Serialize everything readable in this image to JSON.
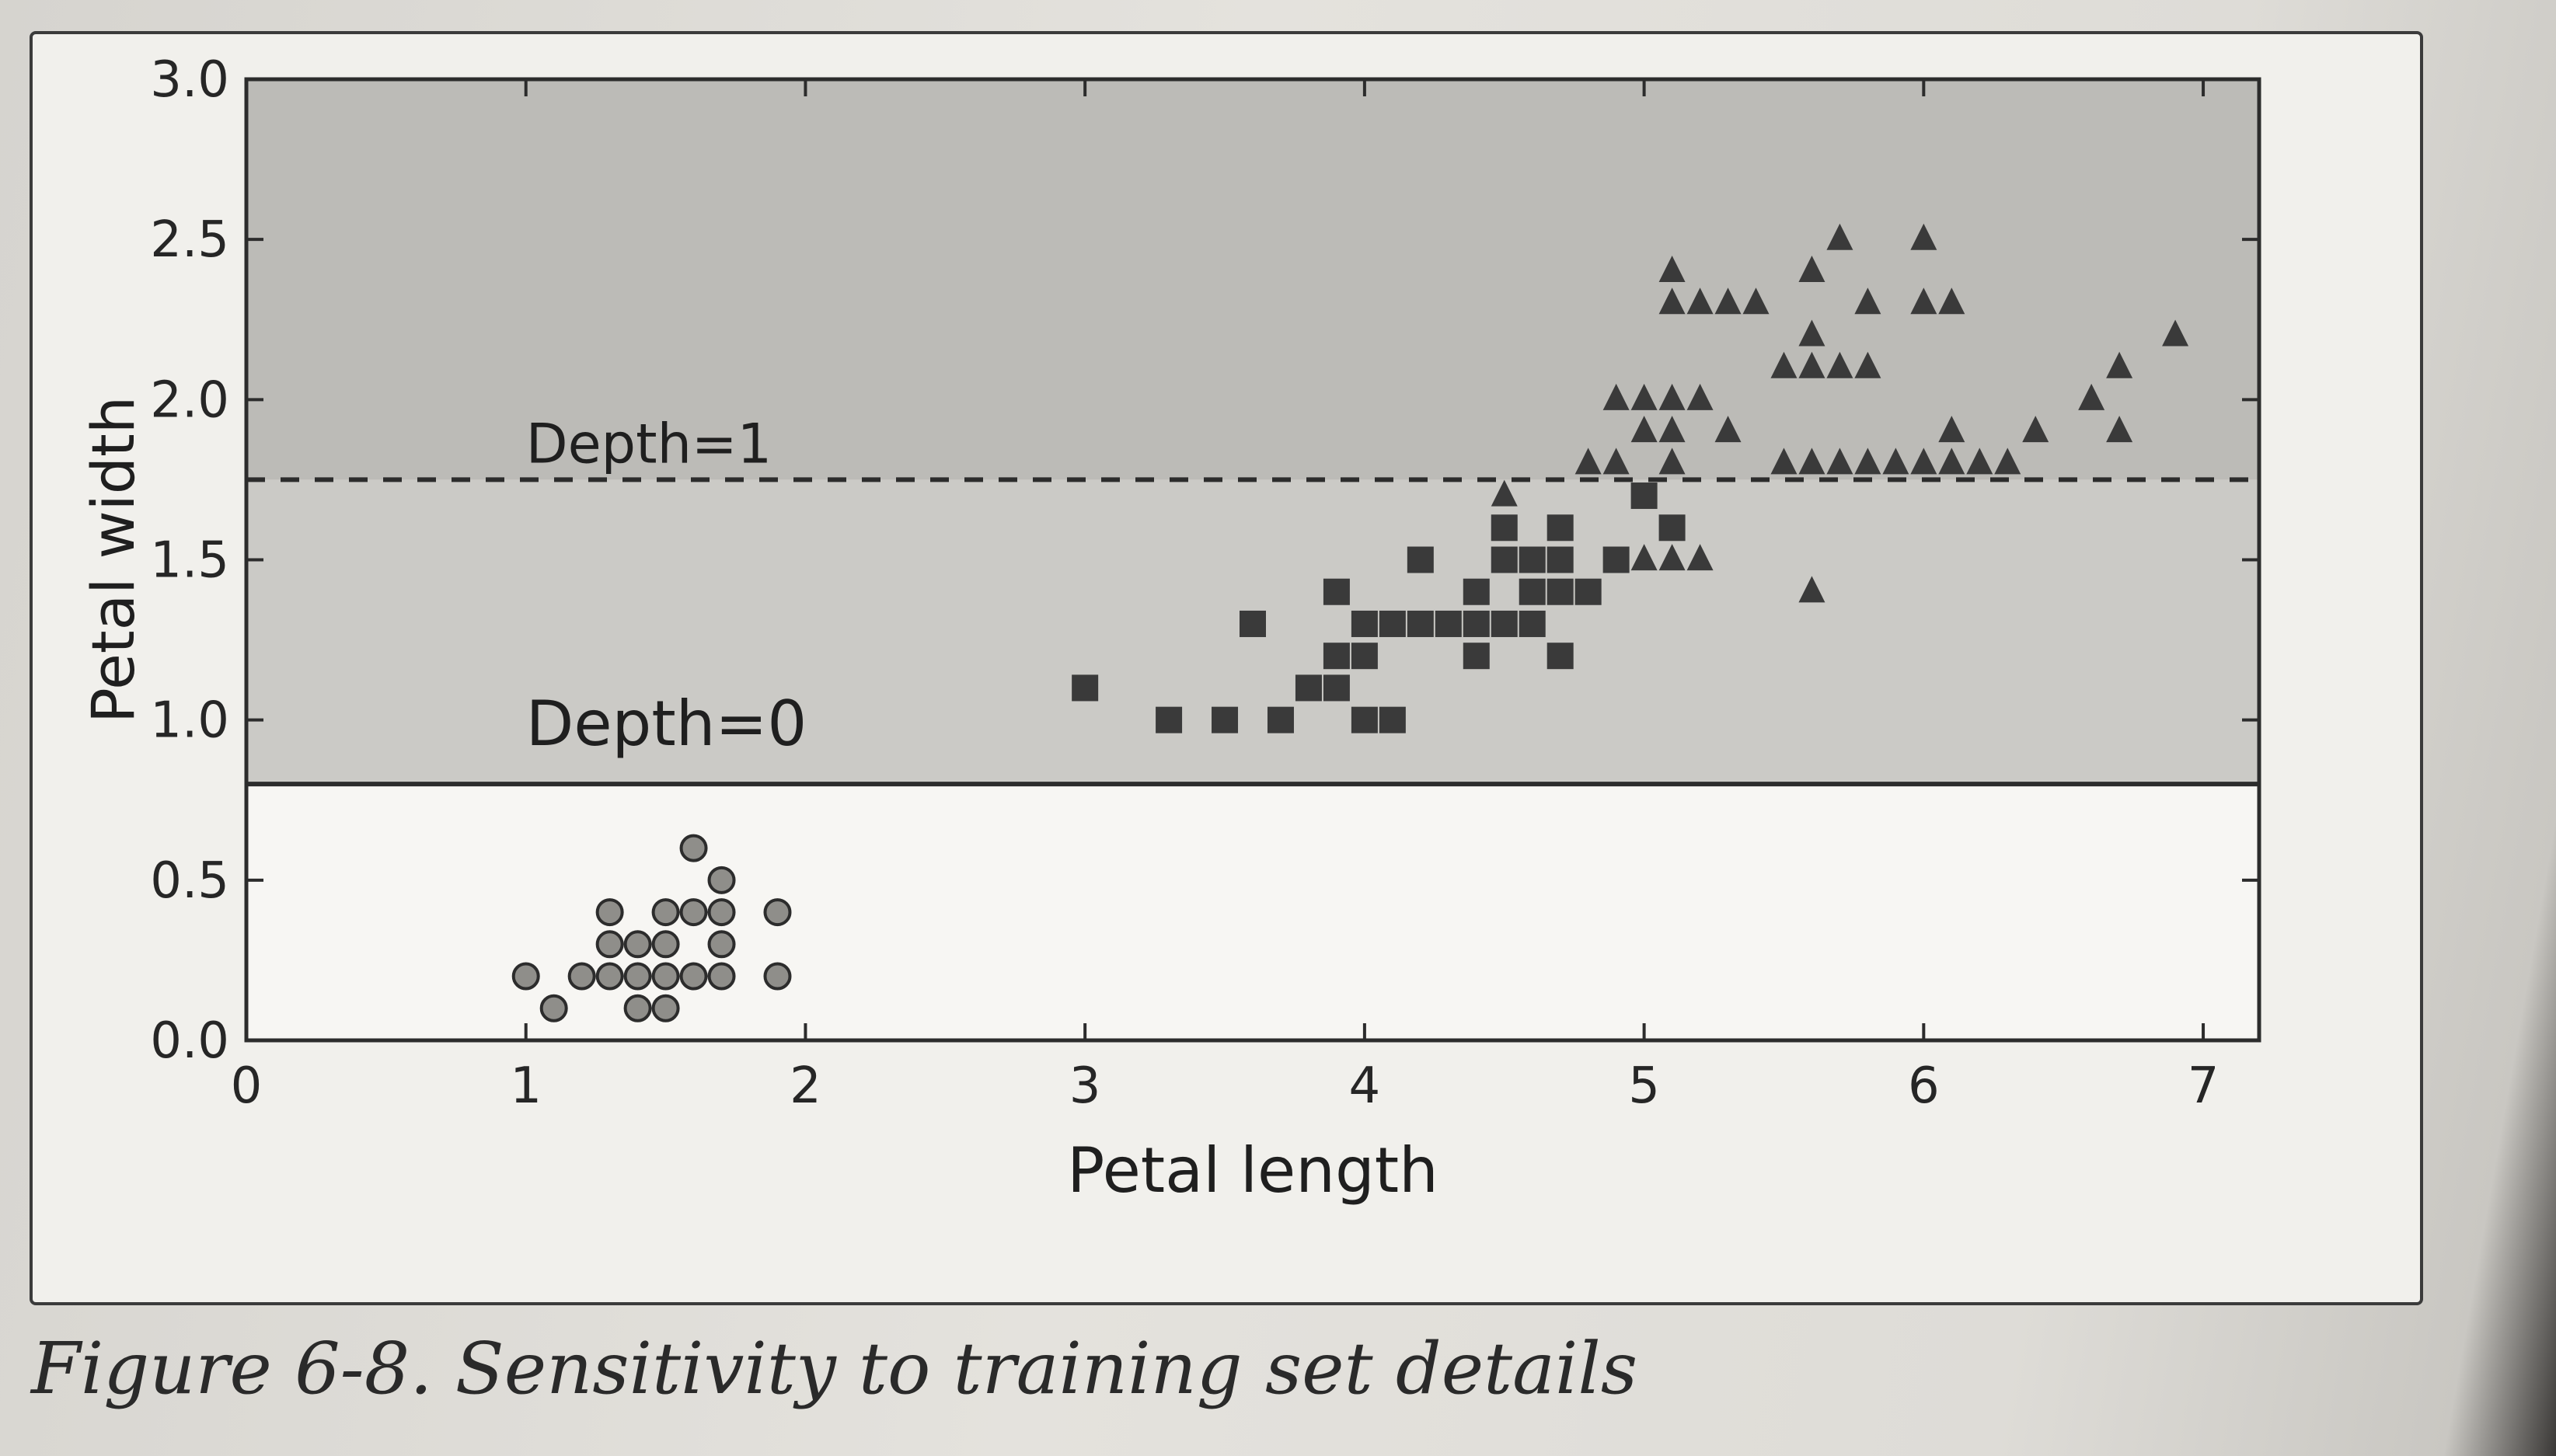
{
  "caption": "Figure 6-8. Sensitivity to training set details",
  "chart_data": {
    "type": "scatter",
    "xlabel": "Petal length",
    "ylabel": "Petal width",
    "xlim": [
      0,
      7.2
    ],
    "ylim": [
      0,
      3.0
    ],
    "x_ticks": [
      0,
      1,
      2,
      3,
      4,
      5,
      6,
      7
    ],
    "y_ticks": [
      0.0,
      0.5,
      1.0,
      1.5,
      2.0,
      2.5,
      3.0
    ],
    "x_tick_labels": [
      "0",
      "1",
      "2",
      "3",
      "4",
      "5",
      "6",
      "7"
    ],
    "y_tick_labels": [
      "0.0",
      "0.5",
      "1.0",
      "1.5",
      "2.0",
      "2.5",
      "3.0"
    ],
    "grid": false,
    "regions": [
      {
        "y_from": 0.0,
        "y_to": 0.8,
        "color": "#f7f6f3"
      },
      {
        "y_from": 0.8,
        "y_to": 1.75,
        "color": "#cbcac6"
      },
      {
        "y_from": 1.75,
        "y_to": 3.0,
        "color": "#bcbbb7"
      }
    ],
    "boundaries": [
      {
        "label": "Depth=0",
        "y": 0.8,
        "style": "solid"
      },
      {
        "label": "Depth=1",
        "y": 1.75,
        "style": "dashed"
      }
    ],
    "series": [
      {
        "marker": "circle",
        "points": [
          [
            1.0,
            0.2
          ],
          [
            1.1,
            0.1
          ],
          [
            1.2,
            0.2
          ],
          [
            1.3,
            0.2
          ],
          [
            1.3,
            0.3
          ],
          [
            1.3,
            0.4
          ],
          [
            1.4,
            0.1
          ],
          [
            1.4,
            0.2
          ],
          [
            1.4,
            0.3
          ],
          [
            1.5,
            0.1
          ],
          [
            1.5,
            0.2
          ],
          [
            1.5,
            0.3
          ],
          [
            1.5,
            0.4
          ],
          [
            1.6,
            0.2
          ],
          [
            1.6,
            0.4
          ],
          [
            1.6,
            0.6
          ],
          [
            1.7,
            0.2
          ],
          [
            1.7,
            0.3
          ],
          [
            1.7,
            0.4
          ],
          [
            1.7,
            0.5
          ],
          [
            1.9,
            0.2
          ],
          [
            1.9,
            0.4
          ]
        ]
      },
      {
        "marker": "square",
        "points": [
          [
            3.0,
            1.1
          ],
          [
            3.3,
            1.0
          ],
          [
            3.5,
            1.0
          ],
          [
            3.6,
            1.3
          ],
          [
            3.7,
            1.0
          ],
          [
            3.8,
            1.1
          ],
          [
            3.9,
            1.1
          ],
          [
            3.9,
            1.2
          ],
          [
            3.9,
            1.4
          ],
          [
            4.0,
            1.0
          ],
          [
            4.0,
            1.2
          ],
          [
            4.0,
            1.3
          ],
          [
            4.1,
            1.0
          ],
          [
            4.1,
            1.3
          ],
          [
            4.2,
            1.3
          ],
          [
            4.2,
            1.5
          ],
          [
            4.3,
            1.3
          ],
          [
            4.4,
            1.2
          ],
          [
            4.4,
            1.3
          ],
          [
            4.4,
            1.4
          ],
          [
            4.5,
            1.3
          ],
          [
            4.5,
            1.5
          ],
          [
            4.5,
            1.6
          ],
          [
            4.6,
            1.3
          ],
          [
            4.6,
            1.4
          ],
          [
            4.6,
            1.5
          ],
          [
            4.7,
            1.2
          ],
          [
            4.7,
            1.4
          ],
          [
            4.7,
            1.5
          ],
          [
            4.7,
            1.6
          ],
          [
            4.8,
            1.4
          ],
          [
            4.9,
            1.5
          ],
          [
            5.0,
            1.7
          ],
          [
            5.1,
            1.6
          ]
        ]
      },
      {
        "marker": "triangle",
        "points": [
          [
            4.5,
            1.7
          ],
          [
            4.8,
            1.8
          ],
          [
            4.9,
            1.8
          ],
          [
            4.9,
            2.0
          ],
          [
            5.0,
            1.9
          ],
          [
            5.0,
            2.0
          ],
          [
            5.0,
            1.5
          ],
          [
            5.1,
            1.5
          ],
          [
            5.1,
            1.8
          ],
          [
            5.1,
            1.9
          ],
          [
            5.1,
            2.0
          ],
          [
            5.1,
            2.3
          ],
          [
            5.1,
            2.4
          ],
          [
            5.2,
            1.5
          ],
          [
            5.2,
            2.0
          ],
          [
            5.2,
            2.3
          ],
          [
            5.3,
            1.9
          ],
          [
            5.3,
            2.3
          ],
          [
            5.4,
            2.3
          ],
          [
            5.5,
            1.8
          ],
          [
            5.5,
            2.1
          ],
          [
            5.6,
            1.4
          ],
          [
            5.6,
            1.8
          ],
          [
            5.6,
            2.1
          ],
          [
            5.6,
            2.2
          ],
          [
            5.6,
            2.4
          ],
          [
            5.7,
            1.8
          ],
          [
            5.7,
            2.1
          ],
          [
            5.7,
            2.5
          ],
          [
            5.8,
            1.8
          ],
          [
            5.8,
            2.1
          ],
          [
            5.8,
            2.3
          ],
          [
            5.9,
            1.8
          ],
          [
            6.0,
            1.8
          ],
          [
            6.0,
            2.3
          ],
          [
            6.0,
            2.5
          ],
          [
            6.1,
            1.8
          ],
          [
            6.1,
            1.9
          ],
          [
            6.1,
            2.3
          ],
          [
            6.2,
            1.8
          ],
          [
            6.3,
            1.8
          ],
          [
            6.4,
            1.9
          ],
          [
            6.6,
            2.0
          ],
          [
            6.7,
            1.9
          ],
          [
            6.7,
            2.1
          ],
          [
            6.9,
            2.2
          ]
        ]
      }
    ]
  }
}
